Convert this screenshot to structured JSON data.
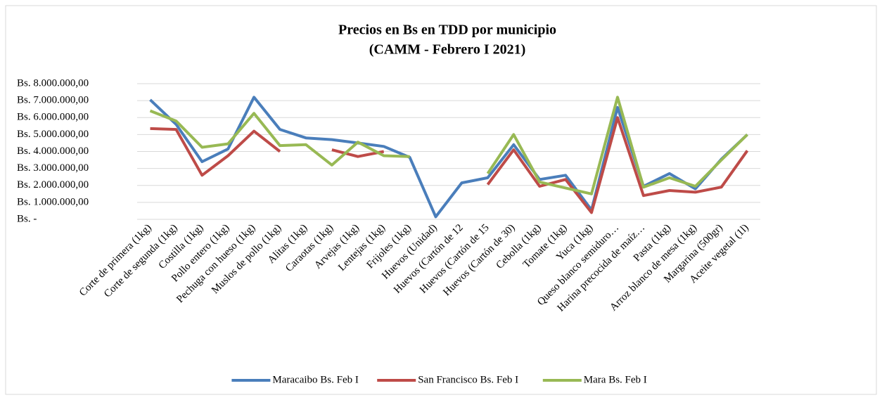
{
  "chart_data": {
    "type": "line",
    "title": "Precios en Bs en TDD por municipio",
    "subtitle": "(CAMM - Febrero I 2021)",
    "categories": [
      "Corte de primera (1kg)",
      "Corte de segunda (1kg)",
      "Costilla (1kg)",
      "Pollo entero (1kg)",
      "Pechuga con hueso (1kg)",
      "Muslos de pollo (1kg)",
      "Alitas (1kg)",
      "Caraotas (1kg)",
      "Arvejas (1kg)",
      "Lentejas (1kg)",
      "Frijoles (1kg)",
      "Huevos (Unidad)",
      "Huevos (Cartón de 12",
      "Huevos (Cartón de 15",
      "Huevos (Cartón de 30)",
      "Cebolla (1kg)",
      "Tomate (1kg)",
      "Yuca (1kg)",
      "Queso blanco semiduro…",
      "Harina precocida de maíz…",
      "Pasta (1kg)",
      "Arroz blanco de mesa (1kg)",
      "Margarina (500gr)",
      "Aceite vegetal (1l)"
    ],
    "series": [
      {
        "name": "Maracaibo Bs. Feb I",
        "color": "#4a7ebb",
        "values": [
          7050000,
          5600000,
          3400000,
          4150000,
          7200000,
          5300000,
          4800000,
          4700000,
          4500000,
          4300000,
          3650000,
          150000,
          2150000,
          2450000,
          4400000,
          2350000,
          2600000,
          550000,
          6600000,
          1950000,
          2700000,
          1800000,
          3550000,
          5000000
        ]
      },
      {
        "name": "San Francisco Bs. Feb I",
        "color": "#be4b48",
        "values": [
          5350000,
          5300000,
          2600000,
          3750000,
          5200000,
          4000000,
          null,
          4100000,
          3700000,
          4000000,
          null,
          null,
          null,
          2050000,
          4100000,
          1950000,
          2350000,
          400000,
          6000000,
          1400000,
          1700000,
          1600000,
          1900000,
          4050000
        ]
      },
      {
        "name": "Mara Bs. Feb I",
        "color": "#98b954",
        "values": [
          6400000,
          5800000,
          4250000,
          4450000,
          6250000,
          4350000,
          4400000,
          3200000,
          4550000,
          3750000,
          3700000,
          null,
          null,
          2700000,
          5000000,
          2200000,
          1850000,
          1500000,
          7200000,
          1900000,
          2450000,
          1950000,
          3500000,
          5000000
        ]
      }
    ],
    "ylim": [
      0,
      8000000
    ],
    "yticks": [
      {
        "value": 0,
        "label": "Bs. -"
      },
      {
        "value": 1000000,
        "label": "Bs. 1.000.000,00"
      },
      {
        "value": 2000000,
        "label": "Bs. 2.000.000,00"
      },
      {
        "value": 3000000,
        "label": "Bs. 3.000.000,00"
      },
      {
        "value": 4000000,
        "label": "Bs. 4.000.000,00"
      },
      {
        "value": 5000000,
        "label": "Bs. 5.000.000,00"
      },
      {
        "value": 6000000,
        "label": "Bs. 6.000.000,00"
      },
      {
        "value": 7000000,
        "label": "Bs. 7.000.000,00"
      },
      {
        "value": 8000000,
        "label": "Bs. 8.000.000,00"
      }
    ],
    "grid": true,
    "legend": "bottom"
  }
}
